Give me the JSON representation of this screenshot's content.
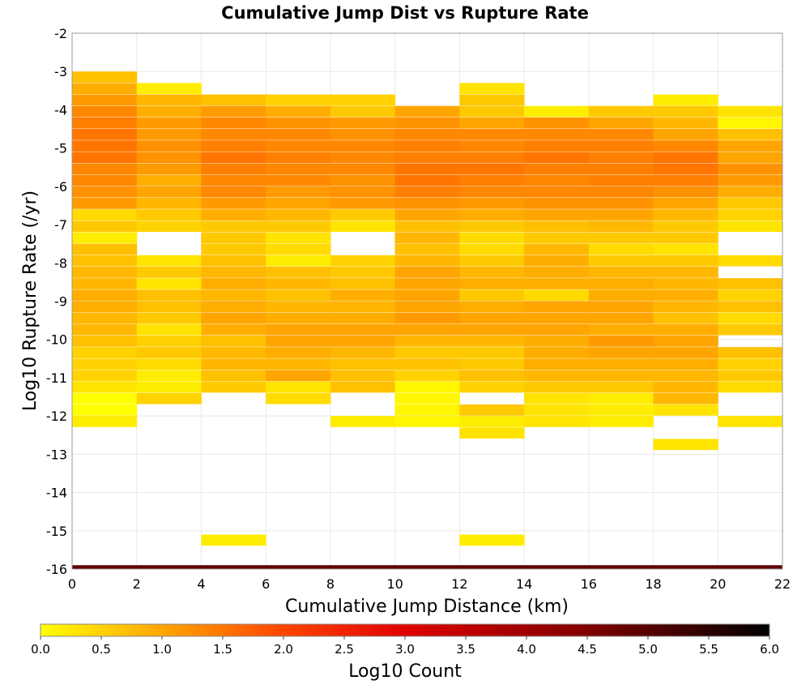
{
  "chart_data": {
    "type": "heatmap",
    "title": "Cumulative Jump Dist vs Rupture Rate",
    "xlabel": "Cumulative Jump Distance (km)",
    "ylabel": "Log10 Rupture Rate (/yr)",
    "xlim": [
      0,
      22
    ],
    "ylim": [
      -16,
      -2
    ],
    "x_ticks": [
      0,
      2,
      4,
      6,
      8,
      10,
      12,
      14,
      16,
      18,
      20,
      22
    ],
    "y_ticks": [
      -2,
      -3,
      -4,
      -5,
      -6,
      -7,
      -8,
      -9,
      -10,
      -11,
      -12,
      -13,
      -14,
      -15,
      -16
    ],
    "x_bin_width": 2,
    "y_bin_width": 0.28,
    "grid": true,
    "colorbar": {
      "label": "Log10 Count",
      "range": [
        0.0,
        6.0
      ],
      "ticks": [
        "0.0",
        "0.5",
        "1.0",
        "1.5",
        "2.0",
        "2.5",
        "3.0",
        "3.5",
        "4.0",
        "4.5",
        "5.0",
        "5.5",
        "6.0"
      ],
      "colors": [
        "#ffff00",
        "#ffa500",
        "#ff4500",
        "#e00000",
        "#800000",
        "#000000"
      ]
    },
    "columns": [
      {
        "x_start": 0,
        "cells": [
          [
            -3.0,
            0.7
          ],
          [
            -3.3,
            0.9
          ],
          [
            -3.6,
            1.1
          ],
          [
            -3.9,
            1.3
          ],
          [
            -4.2,
            1.4
          ],
          [
            -4.5,
            1.5
          ],
          [
            -4.8,
            1.5
          ],
          [
            -5.1,
            1.5
          ],
          [
            -5.4,
            1.3
          ],
          [
            -5.7,
            1.3
          ],
          [
            -6.0,
            1.2
          ],
          [
            -6.3,
            1.1
          ],
          [
            -6.6,
            0.4
          ],
          [
            -6.9,
            0.6
          ],
          [
            -7.2,
            0.2
          ],
          [
            -7.5,
            0.7
          ],
          [
            -7.8,
            0.7
          ],
          [
            -8.1,
            0.8
          ],
          [
            -8.4,
            0.8
          ],
          [
            -8.7,
            0.9
          ],
          [
            -9.0,
            0.9
          ],
          [
            -9.3,
            0.8
          ],
          [
            -9.6,
            0.8
          ],
          [
            -9.9,
            0.7
          ],
          [
            -10.2,
            0.5
          ],
          [
            -10.5,
            0.5
          ],
          [
            -10.8,
            0.5
          ],
          [
            -11.1,
            0.3
          ],
          [
            -11.4,
            0.0
          ],
          [
            -11.7,
            0.0
          ],
          [
            -12.0,
            0.2
          ]
        ]
      },
      {
        "x_start": 2,
        "cells": [
          [
            -3.3,
            0.2
          ],
          [
            -3.6,
            0.8
          ],
          [
            -3.9,
            0.9
          ],
          [
            -4.2,
            1.1
          ],
          [
            -4.5,
            1.1
          ],
          [
            -4.8,
            1.2
          ],
          [
            -5.1,
            1.2
          ],
          [
            -5.4,
            1.1
          ],
          [
            -5.7,
            0.9
          ],
          [
            -6.0,
            1.0
          ],
          [
            -6.3,
            0.8
          ],
          [
            -6.6,
            0.6
          ],
          [
            -6.9,
            0.5
          ],
          [
            -7.8,
            0.3
          ],
          [
            -8.1,
            0.6
          ],
          [
            -8.4,
            0.3
          ],
          [
            -8.7,
            0.7
          ],
          [
            -9.0,
            0.7
          ],
          [
            -9.3,
            0.6
          ],
          [
            -9.6,
            0.3
          ],
          [
            -9.9,
            0.5
          ],
          [
            -10.2,
            0.6
          ],
          [
            -10.5,
            0.4
          ],
          [
            -10.8,
            0.2
          ],
          [
            -11.1,
            0.2
          ],
          [
            -11.4,
            0.5
          ]
        ]
      },
      {
        "x_start": 4,
        "cells": [
          [
            -3.6,
            0.7
          ],
          [
            -3.9,
            1.1
          ],
          [
            -4.2,
            1.3
          ],
          [
            -4.5,
            1.3
          ],
          [
            -4.8,
            1.4
          ],
          [
            -5.1,
            1.5
          ],
          [
            -5.4,
            1.4
          ],
          [
            -5.7,
            1.3
          ],
          [
            -6.0,
            1.3
          ],
          [
            -6.3,
            1.1
          ],
          [
            -6.6,
            0.9
          ],
          [
            -6.9,
            0.6
          ],
          [
            -7.2,
            0.6
          ],
          [
            -7.5,
            0.6
          ],
          [
            -7.8,
            0.7
          ],
          [
            -8.1,
            0.8
          ],
          [
            -8.4,
            0.9
          ],
          [
            -8.7,
            0.8
          ],
          [
            -9.0,
            0.9
          ],
          [
            -9.3,
            1.0
          ],
          [
            -9.6,
            0.9
          ],
          [
            -9.9,
            0.7
          ],
          [
            -10.2,
            0.8
          ],
          [
            -10.5,
            0.8
          ],
          [
            -10.8,
            0.7
          ],
          [
            -11.1,
            0.6
          ],
          [
            -15.1,
            0.2
          ]
        ]
      },
      {
        "x_start": 6,
        "cells": [
          [
            -3.6,
            0.5
          ],
          [
            -3.9,
            0.9
          ],
          [
            -4.2,
            1.2
          ],
          [
            -4.5,
            1.3
          ],
          [
            -4.8,
            1.3
          ],
          [
            -5.1,
            1.4
          ],
          [
            -5.4,
            1.3
          ],
          [
            -5.7,
            1.3
          ],
          [
            -6.0,
            1.1
          ],
          [
            -6.3,
            1.0
          ],
          [
            -6.6,
            0.8
          ],
          [
            -6.9,
            0.6
          ],
          [
            -7.2,
            0.3
          ],
          [
            -7.5,
            0.4
          ],
          [
            -7.8,
            0.2
          ],
          [
            -8.1,
            0.7
          ],
          [
            -8.4,
            0.8
          ],
          [
            -8.7,
            0.7
          ],
          [
            -9.0,
            0.8
          ],
          [
            -9.3,
            0.9
          ],
          [
            -9.6,
            1.0
          ],
          [
            -9.9,
            1.0
          ],
          [
            -10.2,
            0.9
          ],
          [
            -10.5,
            0.8
          ],
          [
            -10.8,
            1.0
          ],
          [
            -11.1,
            0.3
          ],
          [
            -11.4,
            0.4
          ]
        ]
      },
      {
        "x_start": 8,
        "cells": [
          [
            -3.6,
            0.5
          ],
          [
            -3.9,
            0.6
          ],
          [
            -4.2,
            1.1
          ],
          [
            -4.5,
            1.2
          ],
          [
            -4.8,
            1.3
          ],
          [
            -5.1,
            1.3
          ],
          [
            -5.4,
            1.3
          ],
          [
            -5.7,
            1.2
          ],
          [
            -6.0,
            1.2
          ],
          [
            -6.3,
            1.1
          ],
          [
            -6.6,
            0.6
          ],
          [
            -6.9,
            0.3
          ],
          [
            -7.8,
            0.5
          ],
          [
            -8.1,
            0.6
          ],
          [
            -8.4,
            0.7
          ],
          [
            -8.7,
            0.9
          ],
          [
            -9.0,
            0.8
          ],
          [
            -9.3,
            0.9
          ],
          [
            -9.6,
            1.0
          ],
          [
            -9.9,
            1.0
          ],
          [
            -10.2,
            0.8
          ],
          [
            -10.5,
            0.7
          ],
          [
            -10.8,
            0.7
          ],
          [
            -11.1,
            0.7
          ],
          [
            -12.0,
            0.2
          ]
        ]
      },
      {
        "x_start": 10,
        "cells": [
          [
            -3.9,
            1.0
          ],
          [
            -4.2,
            1.2
          ],
          [
            -4.5,
            1.3
          ],
          [
            -4.8,
            1.4
          ],
          [
            -5.1,
            1.4
          ],
          [
            -5.4,
            1.5
          ],
          [
            -5.7,
            1.5
          ],
          [
            -6.0,
            1.4
          ],
          [
            -6.3,
            1.2
          ],
          [
            -6.6,
            1.0
          ],
          [
            -6.9,
            0.7
          ],
          [
            -7.2,
            0.8
          ],
          [
            -7.5,
            0.7
          ],
          [
            -7.8,
            0.8
          ],
          [
            -8.1,
            1.0
          ],
          [
            -8.4,
            1.0
          ],
          [
            -8.7,
            1.0
          ],
          [
            -9.0,
            1.0
          ],
          [
            -9.3,
            1.1
          ],
          [
            -9.6,
            1.0
          ],
          [
            -9.9,
            0.8
          ],
          [
            -10.2,
            0.6
          ],
          [
            -10.5,
            0.7
          ],
          [
            -10.8,
            0.5
          ],
          [
            -11.1,
            0.1
          ],
          [
            -11.4,
            0.1
          ],
          [
            -11.7,
            0.1
          ],
          [
            -12.0,
            0.1
          ]
        ]
      },
      {
        "x_start": 12,
        "cells": [
          [
            -3.3,
            0.3
          ],
          [
            -3.6,
            0.6
          ],
          [
            -3.9,
            0.6
          ],
          [
            -4.2,
            1.0
          ],
          [
            -4.5,
            1.3
          ],
          [
            -4.8,
            1.3
          ],
          [
            -5.1,
            1.4
          ],
          [
            -5.4,
            1.5
          ],
          [
            -5.7,
            1.4
          ],
          [
            -6.0,
            1.3
          ],
          [
            -6.3,
            1.1
          ],
          [
            -6.6,
            0.9
          ],
          [
            -6.9,
            0.6
          ],
          [
            -7.2,
            0.4
          ],
          [
            -7.5,
            0.4
          ],
          [
            -7.8,
            0.6
          ],
          [
            -8.1,
            0.8
          ],
          [
            -8.4,
            0.9
          ],
          [
            -8.7,
            0.6
          ],
          [
            -9.0,
            0.9
          ],
          [
            -9.3,
            1.0
          ],
          [
            -9.6,
            1.0
          ],
          [
            -9.9,
            0.8
          ],
          [
            -10.2,
            0.6
          ],
          [
            -10.5,
            0.6
          ],
          [
            -10.8,
            0.7
          ],
          [
            -11.1,
            0.5
          ],
          [
            -11.7,
            0.6
          ],
          [
            -12.0,
            0.2
          ],
          [
            -12.3,
            0.3
          ],
          [
            -15.1,
            0.2
          ]
        ]
      },
      {
        "x_start": 14,
        "cells": [
          [
            -3.9,
            0.2
          ],
          [
            -4.2,
            1.2
          ],
          [
            -4.5,
            1.3
          ],
          [
            -4.8,
            1.4
          ],
          [
            -5.1,
            1.5
          ],
          [
            -5.4,
            1.4
          ],
          [
            -5.7,
            1.3
          ],
          [
            -6.0,
            1.3
          ],
          [
            -6.3,
            1.2
          ],
          [
            -6.6,
            1.0
          ],
          [
            -6.9,
            0.7
          ],
          [
            -7.2,
            0.6
          ],
          [
            -7.5,
            0.8
          ],
          [
            -7.8,
            0.9
          ],
          [
            -8.1,
            0.9
          ],
          [
            -8.4,
            0.9
          ],
          [
            -8.7,
            0.4
          ],
          [
            -9.0,
            1.0
          ],
          [
            -9.3,
            1.0
          ],
          [
            -9.6,
            1.0
          ],
          [
            -9.9,
            0.9
          ],
          [
            -10.2,
            0.9
          ],
          [
            -10.5,
            0.9
          ],
          [
            -10.8,
            0.8
          ],
          [
            -11.1,
            0.6
          ],
          [
            -11.4,
            0.3
          ],
          [
            -11.7,
            0.3
          ],
          [
            -12.0,
            0.3
          ]
        ]
      },
      {
        "x_start": 16,
        "cells": [
          [
            -3.9,
            0.6
          ],
          [
            -4.2,
            1.0
          ],
          [
            -4.5,
            1.3
          ],
          [
            -4.8,
            1.4
          ],
          [
            -5.1,
            1.4
          ],
          [
            -5.4,
            1.4
          ],
          [
            -5.7,
            1.4
          ],
          [
            -6.0,
            1.3
          ],
          [
            -6.3,
            1.2
          ],
          [
            -6.6,
            1.0
          ],
          [
            -6.9,
            0.8
          ],
          [
            -7.2,
            0.6
          ],
          [
            -7.5,
            0.4
          ],
          [
            -7.8,
            0.6
          ],
          [
            -8.1,
            0.8
          ],
          [
            -8.4,
            0.9
          ],
          [
            -8.7,
            0.9
          ],
          [
            -9.0,
            1.0
          ],
          [
            -9.3,
            1.0
          ],
          [
            -9.6,
            0.9
          ],
          [
            -9.9,
            1.1
          ],
          [
            -10.2,
            1.0
          ],
          [
            -10.5,
            0.9
          ],
          [
            -10.8,
            0.8
          ],
          [
            -11.1,
            0.6
          ],
          [
            -11.4,
            0.2
          ],
          [
            -11.7,
            0.2
          ],
          [
            -12.0,
            0.2
          ]
        ]
      },
      {
        "x_start": 18,
        "cells": [
          [
            -3.6,
            0.2
          ],
          [
            -3.9,
            0.6
          ],
          [
            -4.2,
            0.8
          ],
          [
            -4.5,
            1.0
          ],
          [
            -4.8,
            1.3
          ],
          [
            -5.1,
            1.5
          ],
          [
            -5.4,
            1.5
          ],
          [
            -5.7,
            1.4
          ],
          [
            -6.0,
            1.2
          ],
          [
            -6.3,
            1.0
          ],
          [
            -6.6,
            0.8
          ],
          [
            -6.9,
            0.6
          ],
          [
            -7.2,
            0.6
          ],
          [
            -7.5,
            0.3
          ],
          [
            -7.8,
            0.6
          ],
          [
            -8.1,
            0.8
          ],
          [
            -8.4,
            0.8
          ],
          [
            -8.7,
            0.9
          ],
          [
            -9.0,
            0.8
          ],
          [
            -9.3,
            0.7
          ],
          [
            -9.6,
            0.9
          ],
          [
            -9.9,
            1.0
          ],
          [
            -10.2,
            1.0
          ],
          [
            -10.5,
            0.9
          ],
          [
            -10.8,
            0.8
          ],
          [
            -11.1,
            0.8
          ],
          [
            -11.4,
            0.8
          ],
          [
            -11.7,
            0.3
          ],
          [
            -12.6,
            0.3
          ]
        ]
      },
      {
        "x_start": 20,
        "cells": [
          [
            -3.9,
            0.3
          ],
          [
            -4.2,
            0.1
          ],
          [
            -4.5,
            0.7
          ],
          [
            -4.8,
            1.0
          ],
          [
            -5.1,
            1.0
          ],
          [
            -5.4,
            1.2
          ],
          [
            -5.7,
            1.1
          ],
          [
            -6.0,
            0.9
          ],
          [
            -6.3,
            0.6
          ],
          [
            -6.6,
            0.5
          ],
          [
            -6.9,
            0.3
          ],
          [
            -7.8,
            0.4
          ],
          [
            -8.4,
            0.7
          ],
          [
            -8.7,
            0.5
          ],
          [
            -9.0,
            0.7
          ],
          [
            -9.3,
            0.4
          ],
          [
            -9.6,
            0.6
          ],
          [
            -10.2,
            0.7
          ],
          [
            -10.5,
            0.5
          ],
          [
            -10.8,
            0.6
          ],
          [
            -11.1,
            0.4
          ],
          [
            -12.0,
            0.3
          ]
        ]
      }
    ],
    "bottom_band": {
      "y": -15.9,
      "value": 4.9
    }
  }
}
